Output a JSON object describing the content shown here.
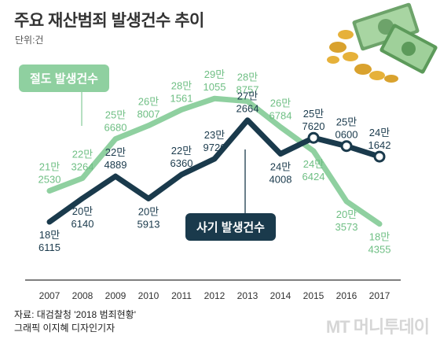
{
  "title": "주요 재산범죄 발생건수 추이",
  "unit": "단위:건",
  "source_line1": "자료: 대검찰청 '2018 범죄현황'",
  "source_line2": "그래픽 이지혜 디자인기자",
  "watermark": "MT 머니투데이",
  "colors": {
    "theft": "#8fd0a0",
    "theft_label": "#6fbf84",
    "fraud": "#1a3a4c",
    "axis": "#333333"
  },
  "chart_data": {
    "type": "line",
    "title": "주요 재산범죄 발생건수 추이",
    "categories": [
      "2007",
      "2008",
      "2009",
      "2010",
      "2011",
      "2012",
      "2013",
      "2014",
      "2015",
      "2016",
      "2017"
    ],
    "x": [
      2007,
      2008,
      2009,
      2010,
      2011,
      2012,
      2013,
      2014,
      2015,
      2016,
      2017
    ],
    "ylim": [
      150000,
      320000
    ],
    "grid": false,
    "series": [
      {
        "name": "절도 발생건수",
        "values": [
          212530,
          223264,
          256680,
          268007,
          281561,
          291055,
          288757,
          266784,
          246424,
          203573,
          184355
        ],
        "labels_top": [
          "21만",
          "22만",
          "25만",
          "26만",
          "28만",
          "29만",
          "28만",
          "26만",
          "24만",
          "20만",
          "18만"
        ],
        "labels_bottom": [
          "2530",
          "3264",
          "6680",
          "8007",
          "1561",
          "1055",
          "8757",
          "6784",
          "6424",
          "3573",
          "4355"
        ]
      },
      {
        "name": "사기 발생건수",
        "values": [
          186115,
          206140,
          224889,
          205913,
          226360,
          239720,
          272664,
          244008,
          257620,
          250600,
          241642
        ],
        "labels_top": [
          "18만",
          "20만",
          "22만",
          "20만",
          "22만",
          "23만",
          "27만",
          "24만",
          "25만",
          "25만",
          "24만"
        ],
        "labels_bottom": [
          "6115",
          "6140",
          "4889",
          "5913",
          "6360",
          "9720",
          "2664",
          "4008",
          "7620",
          "0600",
          "1642"
        ]
      }
    ]
  }
}
